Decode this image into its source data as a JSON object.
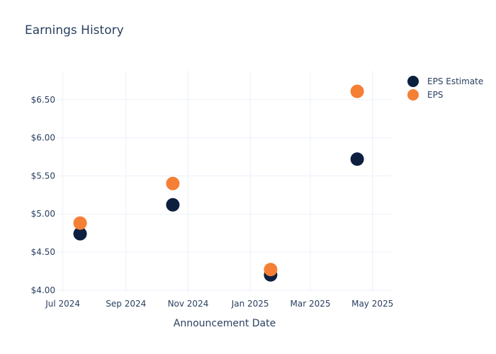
{
  "chart_data": {
    "type": "scatter",
    "title": "Earnings History",
    "xlabel": "Announcement Date",
    "ylabel": "",
    "x_type": "date",
    "xlim": [
      "2024-06-25",
      "2025-05-20"
    ],
    "ylim": [
      3.97,
      6.88
    ],
    "grid": true,
    "legend_position": "top-right",
    "x_ticks": [
      {
        "date": "2024-07-01",
        "label": "Jul 2024"
      },
      {
        "date": "2024-09-01",
        "label": "Sep 2024"
      },
      {
        "date": "2024-11-01",
        "label": "Nov 2024"
      },
      {
        "date": "2025-01-01",
        "label": "Jan 2025"
      },
      {
        "date": "2025-03-01",
        "label": "Mar 2025"
      },
      {
        "date": "2025-05-01",
        "label": "May 2025"
      }
    ],
    "y_ticks": [
      {
        "value": 4.0,
        "label": "$4.00"
      },
      {
        "value": 4.5,
        "label": "$4.50"
      },
      {
        "value": 5.0,
        "label": "$5.00"
      },
      {
        "value": 5.5,
        "label": "$5.50"
      },
      {
        "value": 6.0,
        "label": "$6.00"
      },
      {
        "value": 6.5,
        "label": "$6.50"
      }
    ],
    "series": [
      {
        "name": "EPS Estimate",
        "color": "#0c1f3f",
        "points": [
          {
            "x": "2024-07-18",
            "y": 4.74
          },
          {
            "x": "2024-10-17",
            "y": 5.12
          },
          {
            "x": "2025-01-21",
            "y": 4.2
          },
          {
            "x": "2025-04-16",
            "y": 5.72
          }
        ]
      },
      {
        "name": "EPS",
        "color": "#f47f35",
        "points": [
          {
            "x": "2024-07-18",
            "y": 4.88
          },
          {
            "x": "2024-10-17",
            "y": 5.4
          },
          {
            "x": "2025-01-21",
            "y": 4.27
          },
          {
            "x": "2025-04-16",
            "y": 6.61
          }
        ]
      }
    ]
  }
}
